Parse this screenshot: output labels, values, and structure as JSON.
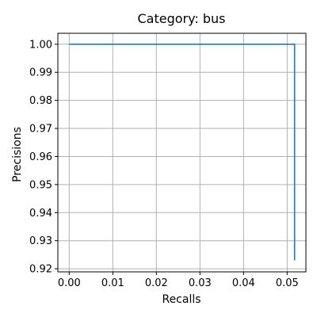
{
  "chart_data": {
    "type": "line",
    "title": "Category: bus",
    "xlabel": "Recalls",
    "ylabel": "Precisions",
    "xlim": [
      -0.0026,
      0.0543
    ],
    "ylim": [
      0.9189,
      1.0039
    ],
    "xticks": [
      0.0,
      0.01,
      0.02,
      0.03,
      0.04,
      0.05
    ],
    "xtick_labels": [
      "0.00",
      "0.01",
      "0.02",
      "0.03",
      "0.04",
      "0.05"
    ],
    "yticks": [
      0.92,
      0.93,
      0.94,
      0.95,
      0.96,
      0.97,
      0.98,
      0.99,
      1.0
    ],
    "ytick_labels": [
      "0.92",
      "0.93",
      "0.94",
      "0.95",
      "0.96",
      "0.97",
      "0.98",
      "0.99",
      "1.00"
    ],
    "grid": true,
    "legend": "none",
    "series": [
      {
        "color": "#1f77b4",
        "x": [
          0.0,
          0.0517,
          0.0517
        ],
        "y": [
          1.0,
          1.0,
          0.923
        ]
      }
    ]
  }
}
